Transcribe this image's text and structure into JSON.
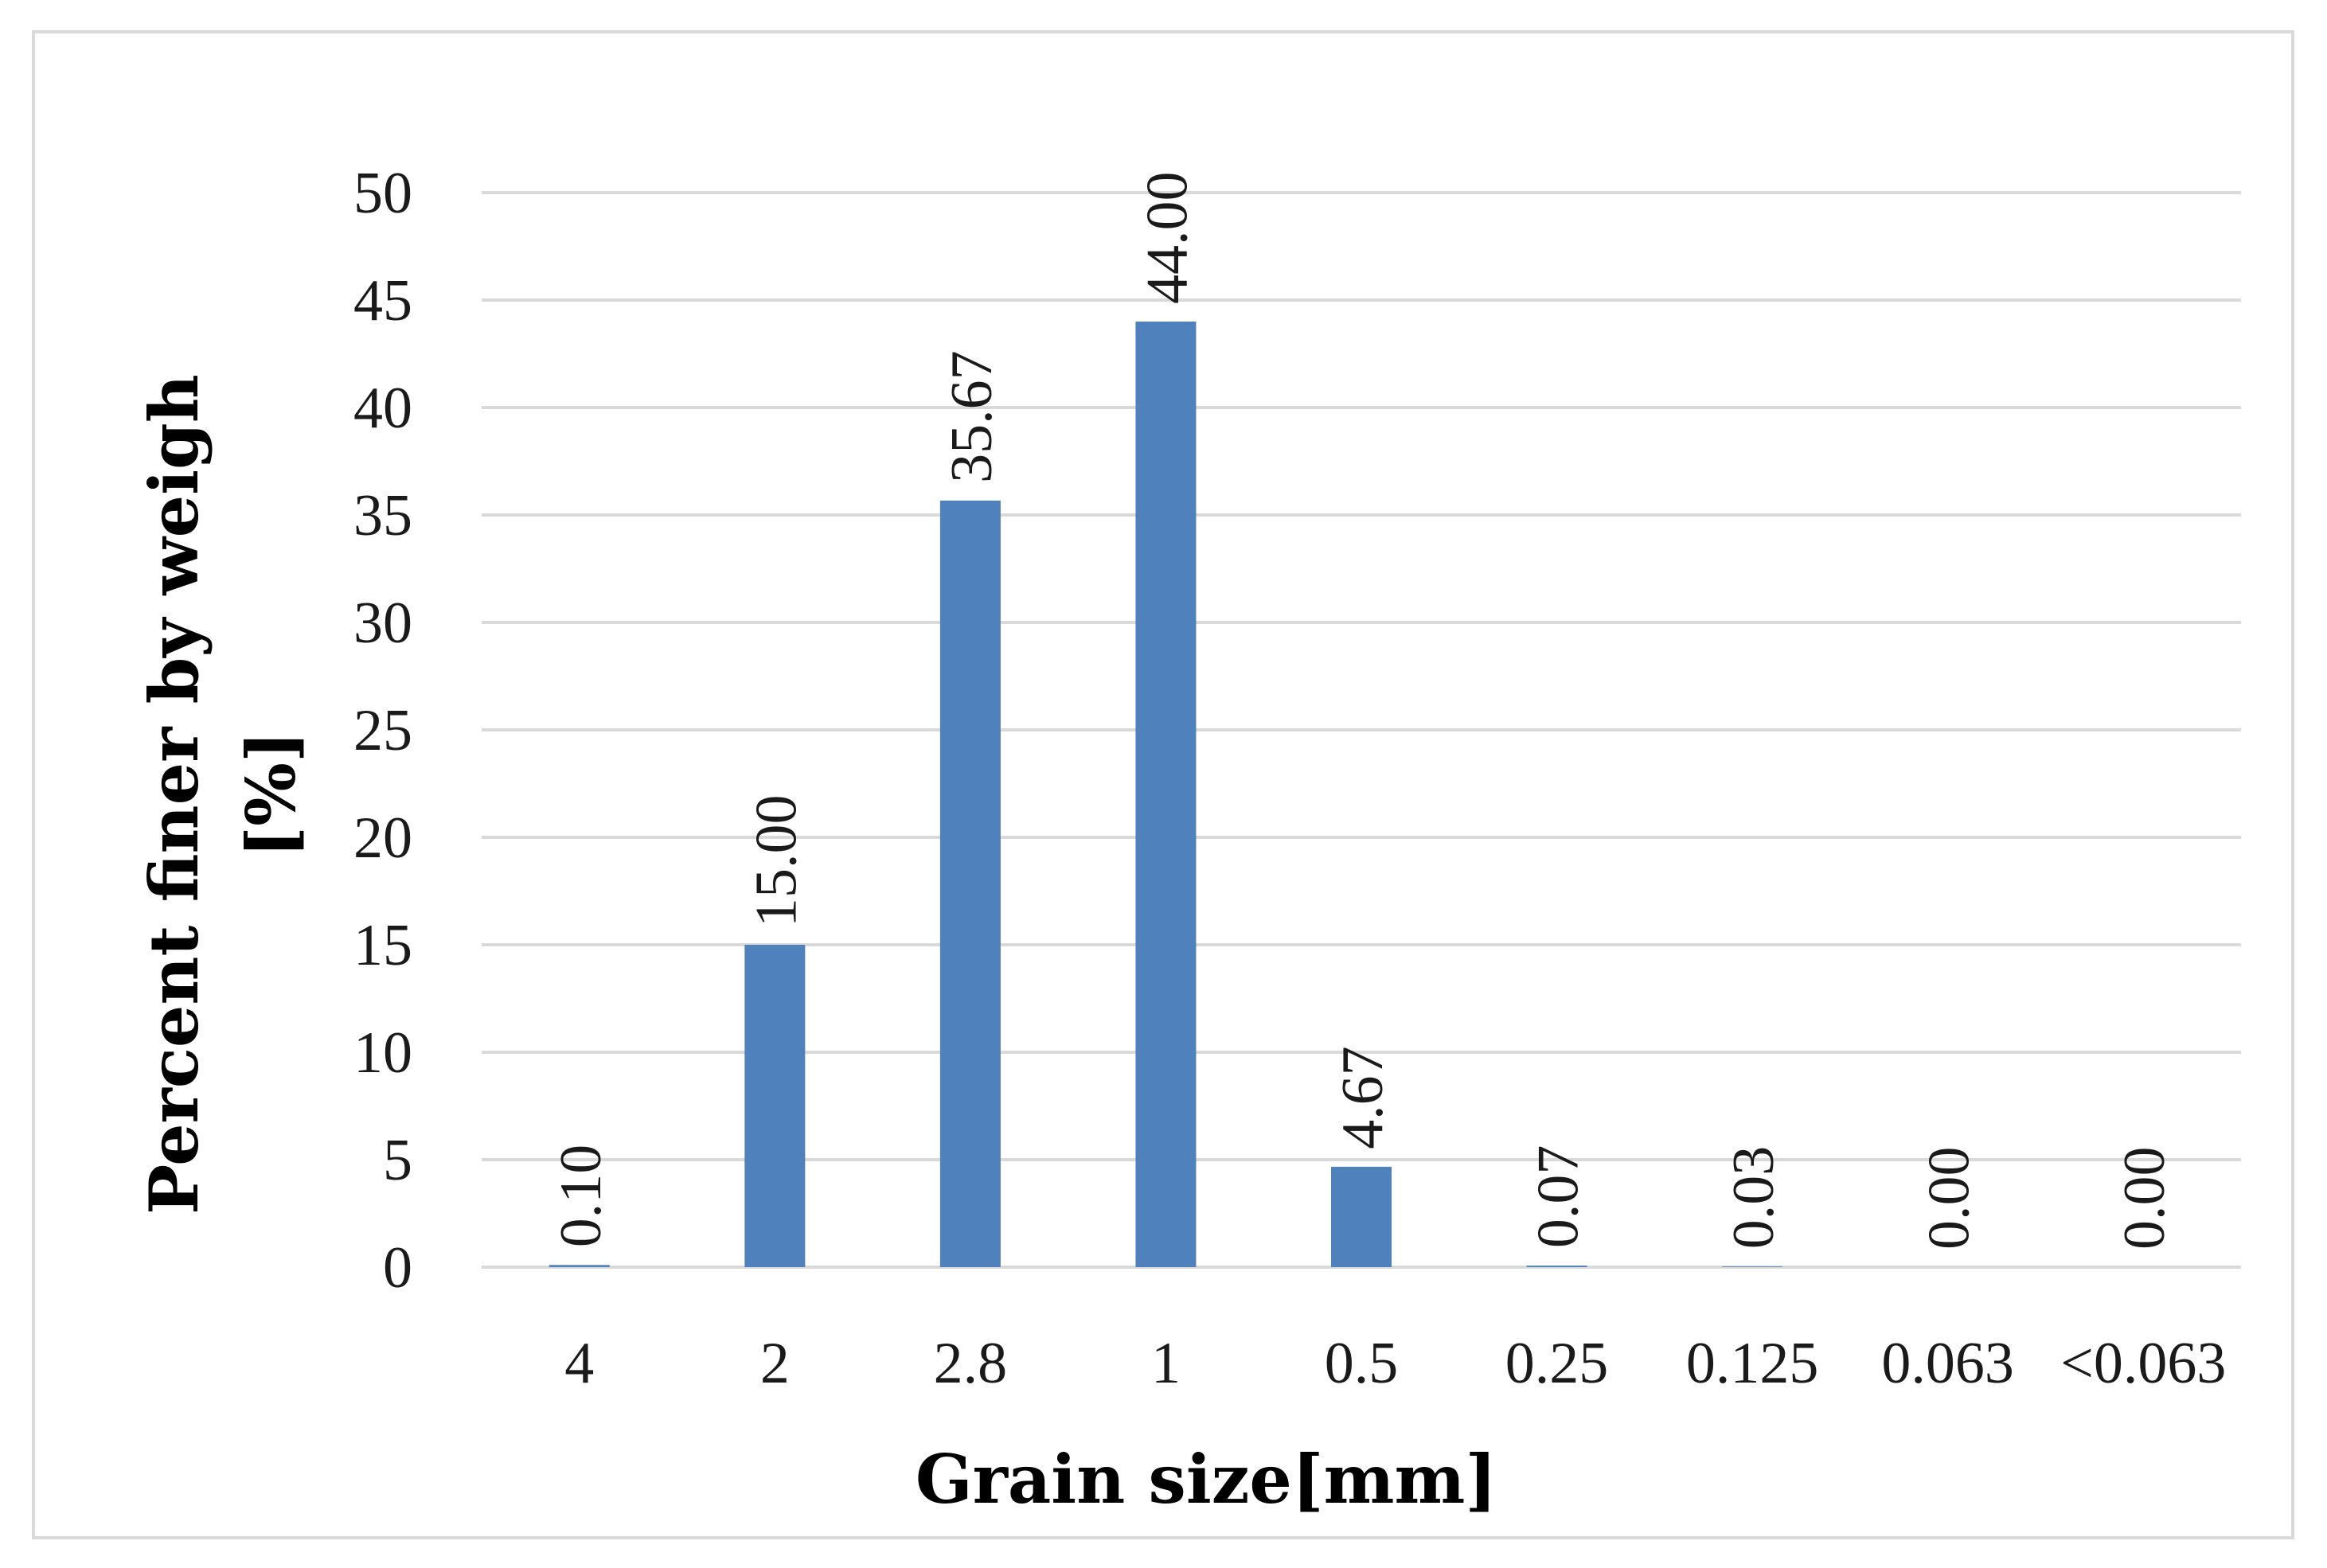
{
  "chart_data": {
    "type": "bar",
    "categories": [
      "4",
      "2",
      "2.8",
      "1",
      "0.5",
      "0.25",
      "0.125",
      "0.063",
      "<0.063"
    ],
    "values": [
      0.1,
      15.0,
      35.67,
      44.0,
      4.67,
      0.07,
      0.03,
      0.0,
      0.0
    ],
    "data_labels": [
      "0.10",
      "15.00",
      "35.67",
      "44.00",
      "4.67",
      "0.07",
      "0.03",
      "0.00",
      "0.00"
    ],
    "title": "",
    "xlabel": "Grain size[mm]",
    "ylabel_lines": [
      "Percent finer by weigh",
      "[%]"
    ],
    "ylim": [
      0,
      50
    ],
    "yticks": [
      "0",
      "5",
      "10",
      "15",
      "20",
      "25",
      "30",
      "35",
      "40",
      "45",
      "50"
    ],
    "grid": true,
    "legend": "none",
    "bar_color": "#4f81bd",
    "grid_color": "#d9d9d9"
  }
}
